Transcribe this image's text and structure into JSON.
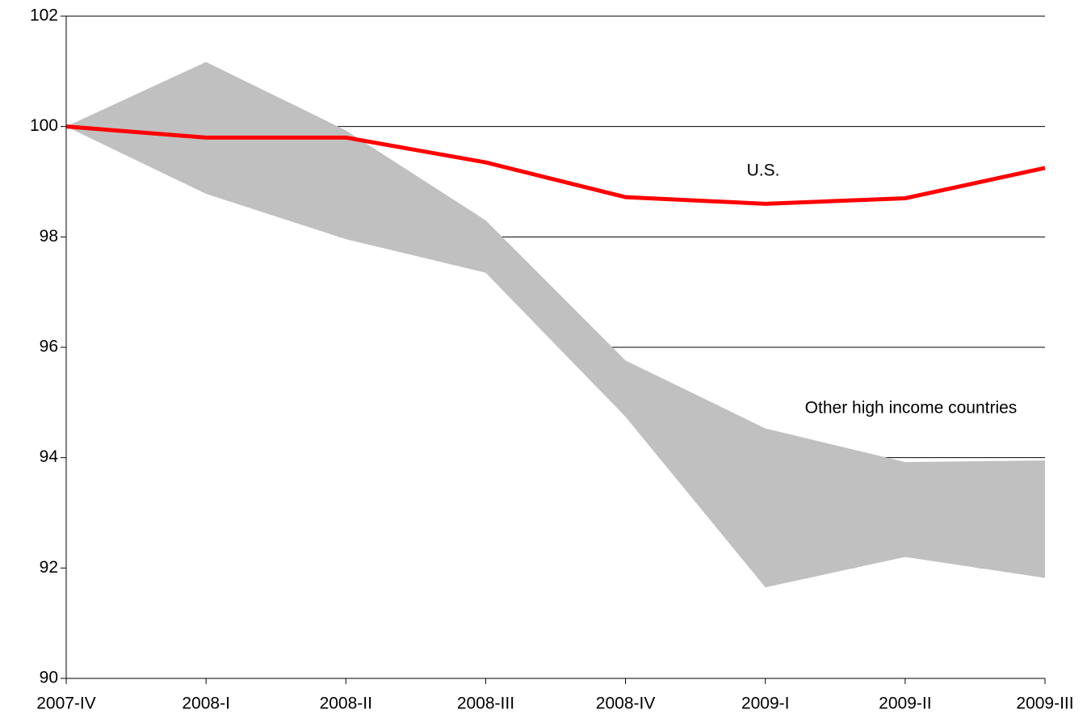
{
  "chart_data": {
    "type": "line",
    "categories": [
      "2007-IV",
      "2008-I",
      "2008-II",
      "2008-III",
      "2008-IV",
      "2009-I",
      "2009-II",
      "2009-III"
    ],
    "series": [
      {
        "name": "U.S.",
        "color": "#ff0000",
        "values": [
          100,
          99.8,
          99.8,
          99.35,
          98.72,
          98.6,
          98.7,
          99.25
        ]
      },
      {
        "name": "Other high income countries",
        "color": "#c0c0c0",
        "upper": [
          100,
          101.17,
          99.93,
          98.3,
          95.76,
          94.53,
          93.92,
          93.95
        ],
        "lower": [
          100,
          98.78,
          97.96,
          97.35,
          94.74,
          91.65,
          92.2,
          91.82
        ]
      }
    ],
    "ylim": [
      90,
      102
    ],
    "yticks": [
      90,
      92,
      94,
      96,
      98,
      100,
      102
    ],
    "grid": true
  }
}
